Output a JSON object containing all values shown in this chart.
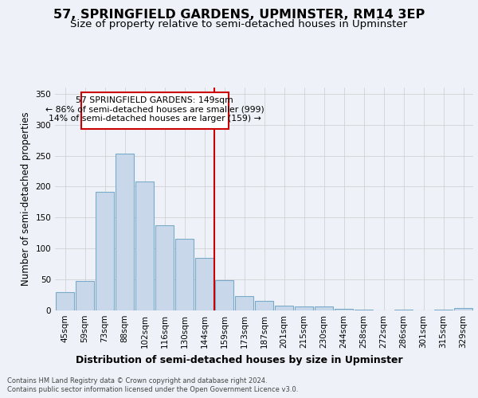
{
  "title": "57, SPRINGFIELD GARDENS, UPMINSTER, RM14 3EP",
  "subtitle": "Size of property relative to semi-detached houses in Upminster",
  "xlabel": "Distribution of semi-detached houses by size in Upminster",
  "ylabel": "Number of semi-detached properties",
  "categories": [
    "45sqm",
    "59sqm",
    "73sqm",
    "88sqm",
    "102sqm",
    "116sqm",
    "130sqm",
    "144sqm",
    "159sqm",
    "173sqm",
    "187sqm",
    "201sqm",
    "215sqm",
    "230sqm",
    "244sqm",
    "258sqm",
    "272sqm",
    "286sqm",
    "301sqm",
    "315sqm",
    "329sqm"
  ],
  "values": [
    29,
    47,
    191,
    253,
    208,
    137,
    116,
    85,
    49,
    23,
    15,
    8,
    6,
    6,
    3,
    1,
    0,
    1,
    0,
    1,
    4
  ],
  "bar_color": "#c8d8ea",
  "bar_edge_color": "#7aaac8",
  "highlight_index": 7,
  "highlight_line_color": "#cc0000",
  "annotation_text_line1": "57 SPRINGFIELD GARDENS: 149sqm",
  "annotation_text_line2": "← 86% of semi-detached houses are smaller (999)",
  "annotation_text_line3": "14% of semi-detached houses are larger (159) →",
  "ylim": [
    0,
    360
  ],
  "background_color": "#eef2f8",
  "plot_bg_color": "#eef2f8",
  "footer_line1": "Contains HM Land Registry data © Crown copyright and database right 2024.",
  "footer_line2": "Contains public sector information licensed under the Open Government Licence v3.0.",
  "title_fontsize": 11.5,
  "subtitle_fontsize": 9.5,
  "tick_fontsize": 7.5,
  "ylabel_fontsize": 8.5,
  "xlabel_fontsize": 9,
  "footer_fontsize": 6,
  "annot_fontsize": 7.8
}
